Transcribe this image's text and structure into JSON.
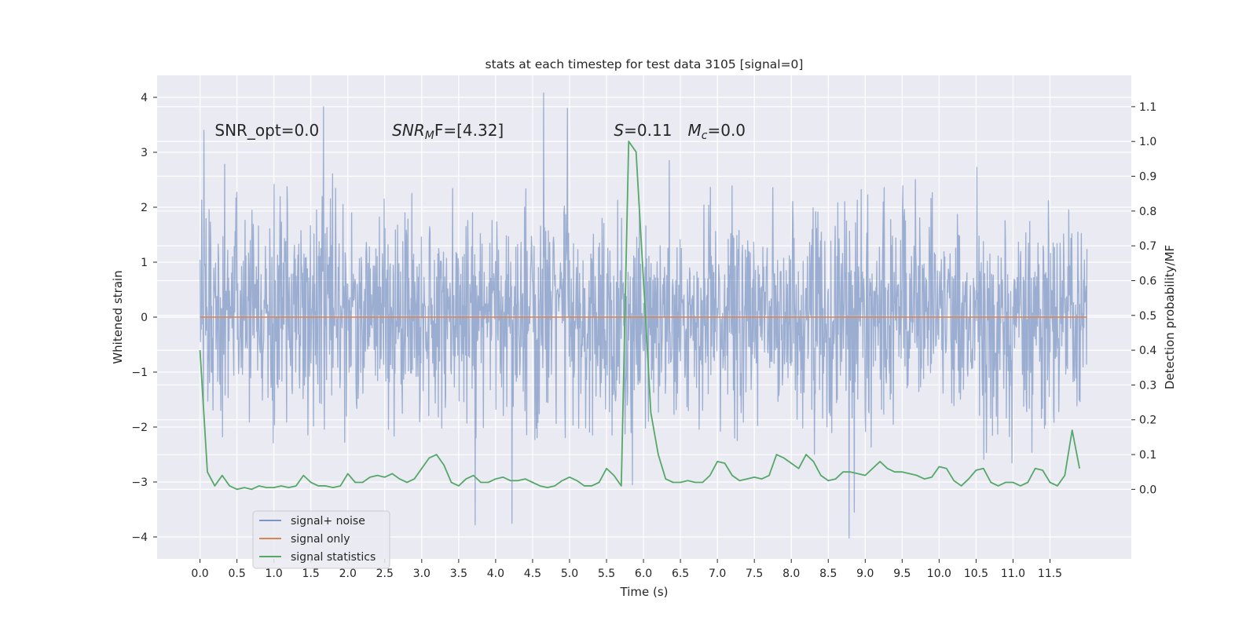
{
  "chart_data": {
    "type": "line",
    "title": "stats at each timestep for test data 3105 [signal=0]",
    "xlabel": "Time (s)",
    "ylabel": "Whitened strain",
    "ylabel_right": "Detection probability/MF",
    "xlim": [
      -0.58,
      12.6
    ],
    "ylim": [
      -4.4,
      4.4
    ],
    "ylim_right": [
      -0.2,
      1.19
    ],
    "x_ticks": [
      0.0,
      0.5,
      1.0,
      1.5,
      2.0,
      2.5,
      3.0,
      3.5,
      4.0,
      4.5,
      5.0,
      5.5,
      6.0,
      6.5,
      7.0,
      7.5,
      8.0,
      8.5,
      9.0,
      9.5,
      10.0,
      10.5,
      11.0,
      11.5
    ],
    "x_tick_labels": [
      "0.0",
      "0.5",
      "1.0",
      "1.5",
      "2.0",
      "2.5",
      "3.0",
      "3.5",
      "4.0",
      "4.5",
      "5.0",
      "5.5",
      "6.0",
      "6.5",
      "7.0",
      "7.5",
      "8.0",
      "8.5",
      "9.0",
      "9.5",
      "10.0",
      "10.5",
      "11.0",
      "11.5"
    ],
    "y_ticks_left": [
      4,
      3,
      2,
      1,
      0,
      -1,
      -2,
      -3,
      -4
    ],
    "y_tick_labels_left": [
      "4",
      "3",
      "2",
      "1",
      "0",
      "−1",
      "−2",
      "−3",
      "−4"
    ],
    "y_ticks_right": [
      1.1,
      1.0,
      0.9,
      0.8,
      0.7,
      0.6,
      0.5,
      0.4,
      0.3,
      0.2,
      0.1,
      0.0
    ],
    "y_tick_labels_right": [
      "1.1",
      "1.0",
      "0.9",
      "0.8",
      "0.7",
      "0.6",
      "0.5",
      "0.4",
      "0.3",
      "0.2",
      "0.1",
      "0.0"
    ],
    "grid": true,
    "legend_placement": "lower-left",
    "annotations": [
      {
        "text": "SNR_opt=0.0",
        "x": 0.2,
        "y": 3.3
      },
      {
        "text": "SNR",
        "sub": "M",
        "tail": "F=[4.32]",
        "italic": true,
        "x": 2.6,
        "y": 3.3
      },
      {
        "text": "S",
        "tail": "=0.11",
        "italic": true,
        "x": 5.6,
        "y": 3.3
      },
      {
        "text": "M",
        "sub": "c",
        "tail": "=0.0",
        "italic": true,
        "x": 6.6,
        "y": 3.3
      }
    ],
    "series": [
      {
        "name": "signal+ noise",
        "axis": "left",
        "color": "#4c72b0",
        "opacity": 0.5,
        "kind": "noise",
        "x_range": [
          0.0,
          12.0
        ],
        "samples": 2048,
        "std": 0.95,
        "seed": 3105,
        "peaks": [
          [
            1.67,
            3.83
          ],
          [
            4.65,
            4.08
          ],
          [
            4.97,
            3.8
          ],
          [
            3.72,
            -3.78
          ],
          [
            4.22,
            -3.75
          ],
          [
            8.78,
            -4.02
          ],
          [
            8.85,
            -3.55
          ],
          [
            0.05,
            3.4
          ],
          [
            5.85,
            -3.05
          ]
        ]
      },
      {
        "name": "signal only",
        "axis": "left",
        "color": "#dd8452",
        "x": [
          0.0,
          12.0
        ],
        "y": [
          0.0,
          0.0
        ]
      },
      {
        "name": "signal statistics",
        "axis": "right",
        "color": "#55a868",
        "x": [
          0.0,
          0.1,
          0.2,
          0.3,
          0.4,
          0.5,
          0.6,
          0.7,
          0.8,
          0.9,
          1.0,
          1.1,
          1.2,
          1.3,
          1.4,
          1.5,
          1.6,
          1.7,
          1.8,
          1.9,
          2.0,
          2.1,
          2.2,
          2.3,
          2.4,
          2.5,
          2.6,
          2.7,
          2.8,
          2.9,
          3.0,
          3.1,
          3.2,
          3.3,
          3.4,
          3.5,
          3.6,
          3.7,
          3.8,
          3.9,
          4.0,
          4.1,
          4.2,
          4.3,
          4.4,
          4.5,
          4.6,
          4.7,
          4.8,
          4.9,
          5.0,
          5.1,
          5.2,
          5.3,
          5.4,
          5.5,
          5.6,
          5.7,
          5.8,
          5.9,
          6.0,
          6.1,
          6.2,
          6.3,
          6.4,
          6.5,
          6.6,
          6.7,
          6.8,
          6.9,
          7.0,
          7.1,
          7.2,
          7.3,
          7.4,
          7.5,
          7.6,
          7.7,
          7.8,
          7.9,
          8.0,
          8.1,
          8.2,
          8.3,
          8.4,
          8.5,
          8.6,
          8.7,
          8.8,
          8.9,
          9.0,
          9.1,
          9.2,
          9.3,
          9.4,
          9.5,
          9.6,
          9.7,
          9.8,
          9.9,
          10.0,
          10.1,
          10.2,
          10.3,
          10.4,
          10.5,
          10.6,
          10.7,
          10.8,
          10.9,
          11.0,
          11.1,
          11.2,
          11.3,
          11.4,
          11.5,
          11.6,
          11.7,
          11.8,
          11.9
        ],
        "y": [
          0.4,
          0.05,
          0.01,
          0.04,
          0.01,
          0.0,
          0.005,
          0.0,
          0.01,
          0.005,
          0.005,
          0.01,
          0.005,
          0.01,
          0.04,
          0.02,
          0.01,
          0.01,
          0.005,
          0.01,
          0.045,
          0.02,
          0.02,
          0.035,
          0.04,
          0.035,
          0.045,
          0.03,
          0.02,
          0.03,
          0.06,
          0.09,
          0.1,
          0.07,
          0.02,
          0.01,
          0.03,
          0.04,
          0.02,
          0.02,
          0.03,
          0.035,
          0.025,
          0.025,
          0.03,
          0.02,
          0.01,
          0.005,
          0.01,
          0.025,
          0.035,
          0.025,
          0.01,
          0.01,
          0.02,
          0.06,
          0.04,
          0.01,
          1.0,
          0.97,
          0.6,
          0.22,
          0.1,
          0.03,
          0.02,
          0.02,
          0.025,
          0.02,
          0.02,
          0.04,
          0.08,
          0.075,
          0.04,
          0.025,
          0.03,
          0.035,
          0.03,
          0.04,
          0.1,
          0.09,
          0.075,
          0.06,
          0.1,
          0.08,
          0.04,
          0.025,
          0.03,
          0.05,
          0.05,
          0.045,
          0.04,
          0.06,
          0.08,
          0.06,
          0.05,
          0.05,
          0.045,
          0.04,
          0.03,
          0.035,
          0.065,
          0.06,
          0.025,
          0.01,
          0.03,
          0.055,
          0.06,
          0.02,
          0.01,
          0.02,
          0.02,
          0.01,
          0.02,
          0.06,
          0.055,
          0.02,
          0.01,
          0.04,
          0.17,
          0.06
        ]
      }
    ]
  }
}
